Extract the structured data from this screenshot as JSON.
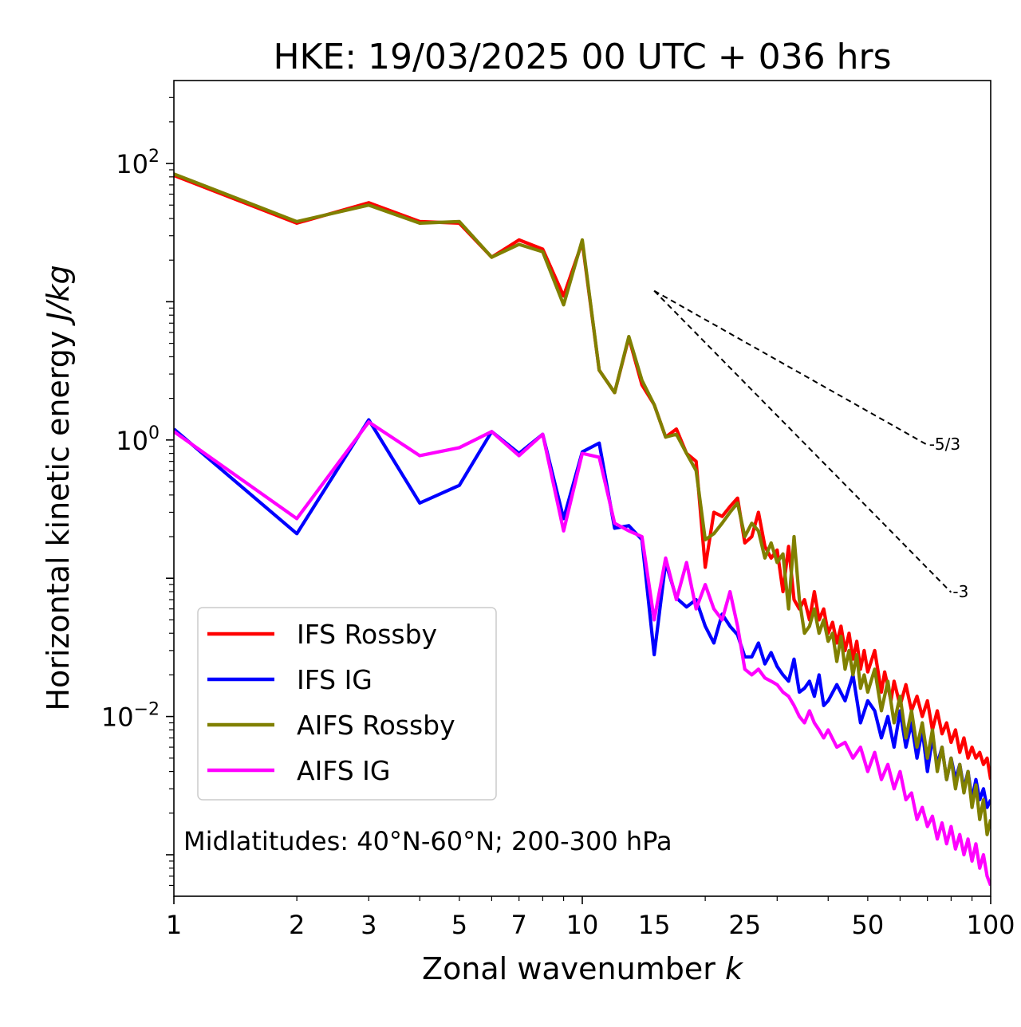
{
  "chart_data": {
    "type": "line",
    "title": "HKE: 19/03/2025 00 UTC + 036 hrs",
    "xlabel_main": "Zonal wavenumber ",
    "xlabel_italic": "k",
    "ylabel_main": "Horizontal kinetic energy ",
    "ylabel_italic": "J/kg",
    "xscale": "log",
    "yscale": "log",
    "xlim": [
      1,
      100
    ],
    "ylim_log10": [
      -3.3,
      2.6
    ],
    "x_ticks": [
      {
        "value": 1,
        "label": "1"
      },
      {
        "value": 2,
        "label": "2"
      },
      {
        "value": 3,
        "label": "3"
      },
      {
        "value": 5,
        "label": "5"
      },
      {
        "value": 7,
        "label": "7"
      },
      {
        "value": 10,
        "label": "10"
      },
      {
        "value": 15,
        "label": "15"
      },
      {
        "value": 25,
        "label": "25"
      },
      {
        "value": 50,
        "label": "50"
      },
      {
        "value": 100,
        "label": "100"
      }
    ],
    "y_ticks": [
      {
        "exp": 2,
        "base": "10",
        "sup": "2"
      },
      {
        "exp": 0,
        "base": "10",
        "sup": "0"
      },
      {
        "exp": -2,
        "base": "10",
        "sup": "−2"
      }
    ],
    "annotation": "Midlatitudes: 40°N-60°N; 200-300 hPa",
    "legend_position": "lower-left",
    "reference_slopes": [
      {
        "label": "-5/3",
        "slope": -1.6667,
        "x0": 15,
        "y0": 12,
        "x1": 70
      },
      {
        "label": "-3",
        "slope": -3,
        "x0": 15,
        "y0": 12,
        "x1": 80
      }
    ],
    "series": [
      {
        "name": "IFS Rossby",
        "color": "#ff0000",
        "points": [
          [
            1,
            82
          ],
          [
            2,
            37
          ],
          [
            3,
            52
          ],
          [
            4,
            38
          ],
          [
            5,
            37
          ],
          [
            6,
            21
          ],
          [
            7,
            28
          ],
          [
            8,
            24
          ],
          [
            9,
            11
          ],
          [
            10,
            27
          ],
          [
            11,
            3.2
          ],
          [
            12,
            2.2
          ],
          [
            13,
            5.5
          ],
          [
            14,
            2.5
          ],
          [
            15,
            1.8
          ],
          [
            16,
            1.05
          ],
          [
            17,
            1.2
          ],
          [
            18,
            0.8
          ],
          [
            19,
            0.7
          ],
          [
            20,
            0.12
          ],
          [
            21,
            0.3
          ],
          [
            22,
            0.28
          ],
          [
            23,
            0.33
          ],
          [
            24,
            0.38
          ],
          [
            25,
            0.18
          ],
          [
            26,
            0.2
          ],
          [
            27,
            0.3
          ],
          [
            28,
            0.17
          ],
          [
            29,
            0.14
          ],
          [
            30,
            0.16
          ],
          [
            31,
            0.08
          ],
          [
            32,
            0.17
          ],
          [
            33,
            0.07
          ],
          [
            34,
            0.06
          ],
          [
            35,
            0.07
          ],
          [
            36,
            0.05
          ],
          [
            37,
            0.08
          ],
          [
            38,
            0.05
          ],
          [
            39,
            0.06
          ],
          [
            40,
            0.04
          ],
          [
            41,
            0.048
          ],
          [
            42,
            0.034
          ],
          [
            43,
            0.045
          ],
          [
            44,
            0.03
          ],
          [
            45,
            0.04
          ],
          [
            46,
            0.026
          ],
          [
            47,
            0.035
          ],
          [
            48,
            0.022
          ],
          [
            49,
            0.03
          ],
          [
            50,
            0.021
          ],
          [
            52,
            0.03
          ],
          [
            54,
            0.015
          ],
          [
            55,
            0.021
          ],
          [
            57,
            0.013
          ],
          [
            58,
            0.018
          ],
          [
            60,
            0.012
          ],
          [
            62,
            0.017
          ],
          [
            64,
            0.011
          ],
          [
            66,
            0.014
          ],
          [
            68,
            0.01
          ],
          [
            70,
            0.013
          ],
          [
            72,
            0.008
          ],
          [
            74,
            0.011
          ],
          [
            76,
            0.0075
          ],
          [
            78,
            0.009
          ],
          [
            80,
            0.0065
          ],
          [
            82,
            0.008
          ],
          [
            84,
            0.0055
          ],
          [
            86,
            0.007
          ],
          [
            88,
            0.005
          ],
          [
            90,
            0.006
          ],
          [
            92,
            0.005
          ],
          [
            94,
            0.0055
          ],
          [
            96,
            0.0045
          ],
          [
            98,
            0.005
          ],
          [
            100,
            0.0035
          ]
        ]
      },
      {
        "name": "IFS IG",
        "color": "#0000ff",
        "points": [
          [
            1,
            1.2
          ],
          [
            2,
            0.21
          ],
          [
            3,
            1.4
          ],
          [
            4,
            0.35
          ],
          [
            5,
            0.47
          ],
          [
            6,
            1.15
          ],
          [
            7,
            0.8
          ],
          [
            8,
            1.1
          ],
          [
            9,
            0.27
          ],
          [
            10,
            0.82
          ],
          [
            11,
            0.95
          ],
          [
            12,
            0.23
          ],
          [
            13,
            0.24
          ],
          [
            14,
            0.19
          ],
          [
            15,
            0.028
          ],
          [
            16,
            0.13
          ],
          [
            17,
            0.072
          ],
          [
            18,
            0.062
          ],
          [
            19,
            0.07
          ],
          [
            20,
            0.045
          ],
          [
            21,
            0.034
          ],
          [
            22,
            0.055
          ],
          [
            23,
            0.045
          ],
          [
            24,
            0.039
          ],
          [
            25,
            0.027
          ],
          [
            26,
            0.027
          ],
          [
            27,
            0.034
          ],
          [
            28,
            0.024
          ],
          [
            29,
            0.029
          ],
          [
            30,
            0.023
          ],
          [
            31,
            0.02
          ],
          [
            32,
            0.018
          ],
          [
            33,
            0.026
          ],
          [
            34,
            0.015
          ],
          [
            35,
            0.016
          ],
          [
            36,
            0.018
          ],
          [
            37,
            0.014
          ],
          [
            38,
            0.02
          ],
          [
            39,
            0.012
          ],
          [
            40,
            0.013
          ],
          [
            42,
            0.017
          ],
          [
            44,
            0.013
          ],
          [
            46,
            0.02
          ],
          [
            48,
            0.009
          ],
          [
            50,
            0.013
          ],
          [
            52,
            0.011
          ],
          [
            54,
            0.007
          ],
          [
            56,
            0.01
          ],
          [
            58,
            0.006
          ],
          [
            60,
            0.011
          ],
          [
            62,
            0.006
          ],
          [
            64,
            0.009
          ],
          [
            66,
            0.005
          ],
          [
            68,
            0.008
          ],
          [
            70,
            0.004
          ],
          [
            72,
            0.007
          ],
          [
            74,
            0.0045
          ],
          [
            76,
            0.006
          ],
          [
            78,
            0.0035
          ],
          [
            80,
            0.005
          ],
          [
            82,
            0.0035
          ],
          [
            84,
            0.0045
          ],
          [
            86,
            0.003
          ],
          [
            88,
            0.004
          ],
          [
            90,
            0.0025
          ],
          [
            92,
            0.0035
          ],
          [
            94,
            0.0025
          ],
          [
            96,
            0.003
          ],
          [
            98,
            0.0022
          ],
          [
            100,
            0.0025
          ]
        ]
      },
      {
        "name": "AIFS Rossby",
        "color": "#808000",
        "points": [
          [
            1,
            84
          ],
          [
            2,
            38
          ],
          [
            3,
            50
          ],
          [
            4,
            37
          ],
          [
            5,
            38
          ],
          [
            6,
            21
          ],
          [
            7,
            26
          ],
          [
            8,
            23
          ],
          [
            9,
            9.5
          ],
          [
            10,
            28
          ],
          [
            11,
            3.2
          ],
          [
            12,
            2.2
          ],
          [
            13,
            5.6
          ],
          [
            14,
            2.7
          ],
          [
            15,
            1.8
          ],
          [
            16,
            1.05
          ],
          [
            17,
            1.1
          ],
          [
            18,
            0.8
          ],
          [
            19,
            0.6
          ],
          [
            20,
            0.19
          ],
          [
            21,
            0.21
          ],
          [
            22,
            0.25
          ],
          [
            23,
            0.3
          ],
          [
            24,
            0.35
          ],
          [
            25,
            0.2
          ],
          [
            26,
            0.25
          ],
          [
            27,
            0.22
          ],
          [
            28,
            0.14
          ],
          [
            29,
            0.18
          ],
          [
            30,
            0.13
          ],
          [
            31,
            0.15
          ],
          [
            32,
            0.06
          ],
          [
            33,
            0.2
          ],
          [
            34,
            0.07
          ],
          [
            35,
            0.04
          ],
          [
            36,
            0.045
          ],
          [
            37,
            0.06
          ],
          [
            38,
            0.04
          ],
          [
            39,
            0.05
          ],
          [
            40,
            0.035
          ],
          [
            41,
            0.04
          ],
          [
            42,
            0.025
          ],
          [
            43,
            0.038
          ],
          [
            44,
            0.022
          ],
          [
            45,
            0.03
          ],
          [
            46,
            0.02
          ],
          [
            47,
            0.028
          ],
          [
            48,
            0.016
          ],
          [
            49,
            0.02
          ],
          [
            50,
            0.015
          ],
          [
            52,
            0.022
          ],
          [
            54,
            0.011
          ],
          [
            56,
            0.018
          ],
          [
            58,
            0.009
          ],
          [
            60,
            0.014
          ],
          [
            62,
            0.007
          ],
          [
            64,
            0.011
          ],
          [
            66,
            0.006
          ],
          [
            68,
            0.009
          ],
          [
            70,
            0.005
          ],
          [
            72,
            0.008
          ],
          [
            74,
            0.004
          ],
          [
            76,
            0.006
          ],
          [
            78,
            0.0035
          ],
          [
            80,
            0.005
          ],
          [
            82,
            0.003
          ],
          [
            84,
            0.0045
          ],
          [
            86,
            0.0028
          ],
          [
            88,
            0.004
          ],
          [
            90,
            0.0022
          ],
          [
            92,
            0.0032
          ],
          [
            94,
            0.0018
          ],
          [
            96,
            0.0025
          ],
          [
            98,
            0.0014
          ],
          [
            100,
            0.0018
          ]
        ]
      },
      {
        "name": "AIFS IG",
        "color": "#ff00ff",
        "points": [
          [
            1,
            1.15
          ],
          [
            2,
            0.27
          ],
          [
            3,
            1.35
          ],
          [
            4,
            0.77
          ],
          [
            5,
            0.88
          ],
          [
            6,
            1.15
          ],
          [
            7,
            0.77
          ],
          [
            8,
            1.1
          ],
          [
            9,
            0.22
          ],
          [
            10,
            0.8
          ],
          [
            11,
            0.75
          ],
          [
            12,
            0.25
          ],
          [
            13,
            0.22
          ],
          [
            14,
            0.2
          ],
          [
            15,
            0.05
          ],
          [
            16,
            0.14
          ],
          [
            17,
            0.07
          ],
          [
            18,
            0.13
          ],
          [
            19,
            0.06
          ],
          [
            20,
            0.09
          ],
          [
            21,
            0.06
          ],
          [
            22,
            0.05
          ],
          [
            23,
            0.08
          ],
          [
            24,
            0.045
          ],
          [
            25,
            0.022
          ],
          [
            26,
            0.02
          ],
          [
            27,
            0.022
          ],
          [
            28,
            0.019
          ],
          [
            29,
            0.018
          ],
          [
            30,
            0.017
          ],
          [
            31,
            0.015
          ],
          [
            32,
            0.014
          ],
          [
            33,
            0.012
          ],
          [
            34,
            0.01
          ],
          [
            35,
            0.009
          ],
          [
            36,
            0.011
          ],
          [
            37,
            0.009
          ],
          [
            38,
            0.008
          ],
          [
            39,
            0.007
          ],
          [
            40,
            0.008
          ],
          [
            42,
            0.006
          ],
          [
            44,
            0.0065
          ],
          [
            46,
            0.005
          ],
          [
            48,
            0.006
          ],
          [
            50,
            0.004
          ],
          [
            52,
            0.0055
          ],
          [
            54,
            0.0035
          ],
          [
            56,
            0.0045
          ],
          [
            58,
            0.003
          ],
          [
            60,
            0.004
          ],
          [
            62,
            0.0025
          ],
          [
            64,
            0.0028
          ],
          [
            66,
            0.0018
          ],
          [
            68,
            0.0022
          ],
          [
            70,
            0.0016
          ],
          [
            72,
            0.0019
          ],
          [
            74,
            0.0013
          ],
          [
            76,
            0.0017
          ],
          [
            78,
            0.0012
          ],
          [
            80,
            0.0016
          ],
          [
            82,
            0.0011
          ],
          [
            84,
            0.0014
          ],
          [
            86,
            0.001
          ],
          [
            88,
            0.0013
          ],
          [
            90,
            0.0009
          ],
          [
            92,
            0.0012
          ],
          [
            94,
            0.0008
          ],
          [
            96,
            0.001
          ],
          [
            98,
            0.0007
          ],
          [
            100,
            0.0006
          ]
        ]
      }
    ]
  }
}
